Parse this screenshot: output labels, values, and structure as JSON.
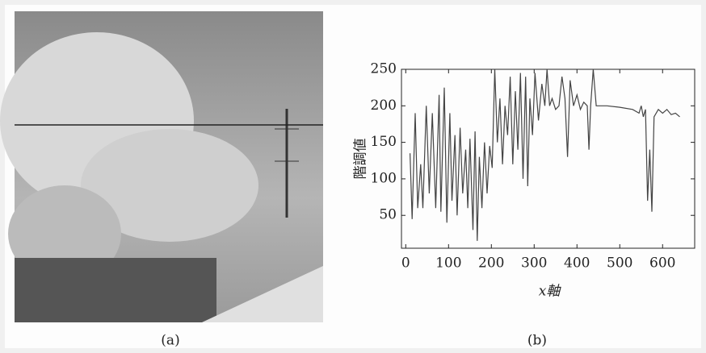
{
  "captions": [
    "(a)",
    "(b)"
  ],
  "chart_data": {
    "type": "line",
    "ylabel": "階調値",
    "xlabel": "x軸",
    "x": [
      10,
      15,
      22,
      28,
      35,
      40,
      48,
      55,
      62,
      70,
      78,
      82,
      90,
      96,
      103,
      108,
      115,
      120,
      127,
      133,
      140,
      145,
      150,
      157,
      162,
      167,
      172,
      178,
      184,
      190,
      196,
      202,
      208,
      214,
      220,
      226,
      232,
      238,
      244,
      250,
      256,
      262,
      268,
      274,
      280,
      285,
      290,
      296,
      302,
      310,
      318,
      325,
      330,
      336,
      342,
      350,
      358,
      365,
      372,
      378,
      384,
      392,
      400,
      408,
      416,
      424,
      428,
      432,
      438,
      445,
      470,
      500,
      530,
      545,
      550,
      555,
      560,
      565,
      570,
      575,
      580,
      590,
      600,
      610,
      620,
      630,
      640
    ],
    "y": [
      135,
      45,
      190,
      60,
      120,
      60,
      200,
      80,
      190,
      60,
      215,
      55,
      225,
      40,
      190,
      70,
      160,
      50,
      170,
      80,
      140,
      60,
      155,
      30,
      165,
      15,
      130,
      60,
      150,
      80,
      145,
      115,
      250,
      150,
      210,
      120,
      200,
      160,
      240,
      120,
      220,
      140,
      245,
      100,
      240,
      90,
      210,
      160,
      245,
      180,
      230,
      200,
      250,
      200,
      210,
      195,
      200,
      240,
      210,
      130,
      235,
      200,
      215,
      195,
      205,
      200,
      140,
      200,
      250,
      200,
      200,
      198,
      195,
      190,
      200,
      185,
      195,
      70,
      140,
      55,
      185,
      195,
      190,
      195,
      188,
      190,
      185
    ],
    "color": "#444444",
    "xlim": [
      -10,
      675
    ],
    "ylim": [
      5,
      250
    ],
    "xticks": [
      0,
      100,
      200,
      300,
      400,
      500,
      600
    ],
    "yticks": [
      50,
      100,
      150,
      200,
      250
    ]
  }
}
